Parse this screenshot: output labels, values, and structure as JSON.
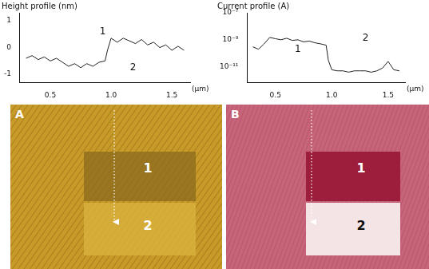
{
  "chart_data": [
    {
      "type": "line",
      "title": "Height profile (nm)",
      "x_label": "(μm)",
      "color": "#222222",
      "grid": false,
      "x": [
        0.3,
        0.35,
        0.4,
        0.45,
        0.5,
        0.55,
        0.6,
        0.65,
        0.7,
        0.75,
        0.8,
        0.85,
        0.9,
        0.95,
        0.97,
        1.0,
        1.05,
        1.1,
        1.15,
        1.2,
        1.25,
        1.3,
        1.35,
        1.4,
        1.45,
        1.5,
        1.55,
        1.6
      ],
      "values": [
        -0.4,
        -0.3,
        -0.45,
        -0.35,
        -0.5,
        -0.4,
        -0.55,
        -0.7,
        -0.6,
        -0.75,
        -0.6,
        -0.7,
        -0.55,
        -0.5,
        -0.1,
        0.35,
        0.2,
        0.35,
        0.25,
        0.15,
        0.3,
        0.1,
        0.2,
        0.0,
        0.1,
        -0.1,
        0.05,
        -0.1
      ],
      "xlim": [
        0.25,
        1.65
      ],
      "xticks": [
        0.5,
        {
          "value": 1,
          "label": "1.0"
        },
        1.5
      ],
      "ylim": [
        -1.3,
        1.3
      ],
      "yticks": [
        -1,
        0,
        1
      ],
      "annotations": [
        {
          "text": "1",
          "x": 0.93,
          "y": 0.6
        },
        {
          "text": "2",
          "x": 1.18,
          "y": -0.75
        }
      ]
    },
    {
      "type": "line",
      "title": "Current profile (A)",
      "x_label": "(μm)",
      "color": "#222222",
      "grid": false,
      "log": "y",
      "x": [
        0.3,
        0.35,
        0.4,
        0.45,
        0.5,
        0.55,
        0.6,
        0.65,
        0.7,
        0.75,
        0.8,
        0.85,
        0.9,
        0.95,
        0.97,
        1.0,
        1.05,
        1.1,
        1.15,
        1.2,
        1.25,
        1.3,
        1.35,
        1.4,
        1.45,
        1.5,
        1.55,
        1.6
      ],
      "values": [
        3e-10,
        2e-10,
        5e-10,
        1.5e-09,
        1.2e-09,
        1e-09,
        1.3e-09,
        9e-10,
        1e-09,
        7e-10,
        8e-10,
        6e-10,
        5e-10,
        4e-10,
        3e-11,
        6e-12,
        5e-12,
        5e-12,
        4e-12,
        5e-12,
        5e-12,
        5e-12,
        4e-12,
        5e-12,
        8e-12,
        2.5e-11,
        6e-12,
        5e-12
      ],
      "xlim": [
        0.25,
        1.65
      ],
      "xticks": [
        0.5,
        {
          "value": 1,
          "label": "1.0"
        },
        1.5
      ],
      "ylim": [
        7e-13,
        1e-07
      ],
      "yticks": [
        {
          "value": 1e-11,
          "label": "10⁻¹¹"
        },
        {
          "value": 1e-09,
          "label": "10⁻⁹"
        },
        {
          "value": 1e-07,
          "label": "10⁻⁷"
        }
      ],
      "annotations": [
        {
          "text": "1",
          "x": 0.7,
          "y": 2e-10
        },
        {
          "text": "2",
          "x": 1.3,
          "y": 1.3e-09
        }
      ]
    }
  ],
  "images": [
    {
      "label": "A",
      "region_labels": [
        "1",
        "2"
      ]
    },
    {
      "label": "B",
      "region_labels": [
        "1",
        "2"
      ]
    }
  ]
}
